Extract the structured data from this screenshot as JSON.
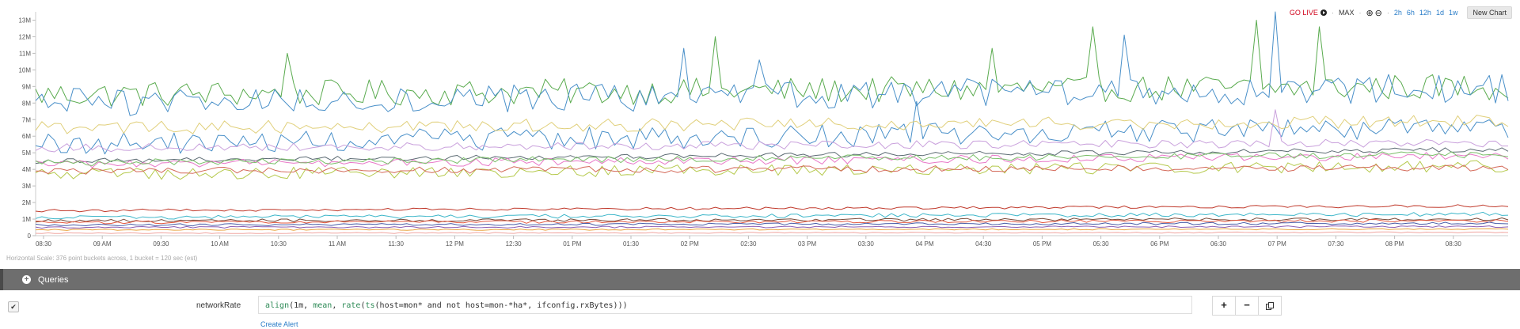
{
  "toolbar": {
    "go_live": "GO LIVE",
    "max": "MAX",
    "ranges": [
      "2h",
      "6h",
      "12h",
      "1d",
      "1w"
    ],
    "new_chart": "New Chart"
  },
  "horizontal_scale": "Horizontal Scale: 376 point buckets across, 1 bucket = 120 sec (est)",
  "queries": {
    "header": "Queries",
    "name": "networkRate",
    "expr": {
      "align": "align",
      "a1": "(1m, ",
      "mean": "mean",
      "a2": ", ",
      "rate": "rate",
      "a3": "(",
      "ts": "ts",
      "a4": "(host=mon* and not host=mon-*ha*, ifconfig.rxBytes)))"
    },
    "create_alert": "Create Alert"
  },
  "colors": {
    "accent": "#2a7dc8",
    "go_live": "#d0021b",
    "queries_bar": "#6e6e6e"
  },
  "icons": [
    "record-icon",
    "zoom-in-icon",
    "zoom-out-icon",
    "checkmark-icon",
    "plus-circle-icon",
    "plus-icon",
    "minus-icon",
    "copy-icon"
  ],
  "chart_data": {
    "type": "line",
    "x_tick_labels": [
      "08:30",
      "09 AM",
      "09:30",
      "10 AM",
      "10:30",
      "11 AM",
      "11:30",
      "12 PM",
      "12:30",
      "01 PM",
      "01:30",
      "02 PM",
      "02:30",
      "03 PM",
      "03:30",
      "04 PM",
      "04:30",
      "05 PM",
      "05:30",
      "06 PM",
      "06:30",
      "07 PM",
      "07:30",
      "08 PM",
      "08:30"
    ],
    "y_tick_labels": [
      "0",
      "1M",
      "2M",
      "3M",
      "4M",
      "5M",
      "6M",
      "7M",
      "8M",
      "9M",
      "10M",
      "11M",
      "12M",
      "13M"
    ],
    "ylim": [
      0,
      13500000
    ],
    "x_range": [
      "08:20",
      "08:55"
    ],
    "buckets": 376,
    "grid": true,
    "series": [
      {
        "color": "#5aab4f",
        "start": 8500000,
        "end": 9000000,
        "noise": 800000,
        "spikes": [
          [
            0.17,
            11000000
          ],
          [
            0.46,
            12000000
          ],
          [
            0.65,
            11300000
          ],
          [
            0.72,
            12600000
          ],
          [
            0.83,
            13000000
          ],
          [
            0.87,
            12600000
          ]
        ]
      },
      {
        "color": "#4a90c9",
        "start": 8000000,
        "end": 8900000,
        "noise": 900000,
        "spikes": [
          [
            0.25,
            10000000
          ],
          [
            0.44,
            11300000
          ],
          [
            0.49,
            10600000
          ],
          [
            0.74,
            12100000
          ],
          [
            0.84,
            13500000
          ]
        ]
      },
      {
        "color": "#4a90c9",
        "start": 5500000,
        "end": 6500000,
        "noise": 700000,
        "spikes": [
          [
            0.6,
            8100000
          ],
          [
            0.8,
            7000000
          ]
        ]
      },
      {
        "color": "#e0cf7a",
        "start": 6500000,
        "end": 6900000,
        "noise": 400000,
        "spikes": []
      },
      {
        "color": "#c9a0dc",
        "start": 5300000,
        "end": 5600000,
        "noise": 250000,
        "spikes": [
          [
            0.84,
            7600000
          ]
        ]
      },
      {
        "color": "#5c6b73",
        "start": 4500000,
        "end": 5200000,
        "noise": 150000,
        "spikes": []
      },
      {
        "color": "#e878c8",
        "start": 4300000,
        "end": 4800000,
        "noise": 250000,
        "spikes": []
      },
      {
        "color": "#7bbf6a",
        "start": 4400000,
        "end": 4900000,
        "noise": 200000,
        "spikes": []
      },
      {
        "color": "#b5c94c",
        "start": 3700000,
        "end": 4200000,
        "noise": 350000,
        "spikes": []
      },
      {
        "color": "#d46a5a",
        "start": 3900000,
        "end": 4100000,
        "noise": 200000,
        "spikes": []
      },
      {
        "color": "#c0392b",
        "start": 1500000,
        "end": 1800000,
        "noise": 80000,
        "spikes": []
      },
      {
        "color": "#3cb6c9",
        "start": 1100000,
        "end": 1300000,
        "noise": 120000,
        "spikes": []
      },
      {
        "color": "#7a4b3a",
        "start": 900000,
        "end": 1000000,
        "noise": 90000,
        "spikes": []
      },
      {
        "color": "#e4573d",
        "start": 800000,
        "end": 900000,
        "noise": 90000,
        "spikes": []
      },
      {
        "color": "#4a5ea8",
        "start": 650000,
        "end": 750000,
        "noise": 70000,
        "spikes": []
      },
      {
        "color": "#8e5fb3",
        "start": 500000,
        "end": 550000,
        "noise": 50000,
        "spikes": []
      },
      {
        "color": "#e8a33d",
        "start": 350000,
        "end": 400000,
        "noise": 40000,
        "spikes": []
      },
      {
        "color": "#f0a5a0",
        "start": 150000,
        "end": 200000,
        "noise": 30000,
        "spikes": []
      }
    ]
  }
}
